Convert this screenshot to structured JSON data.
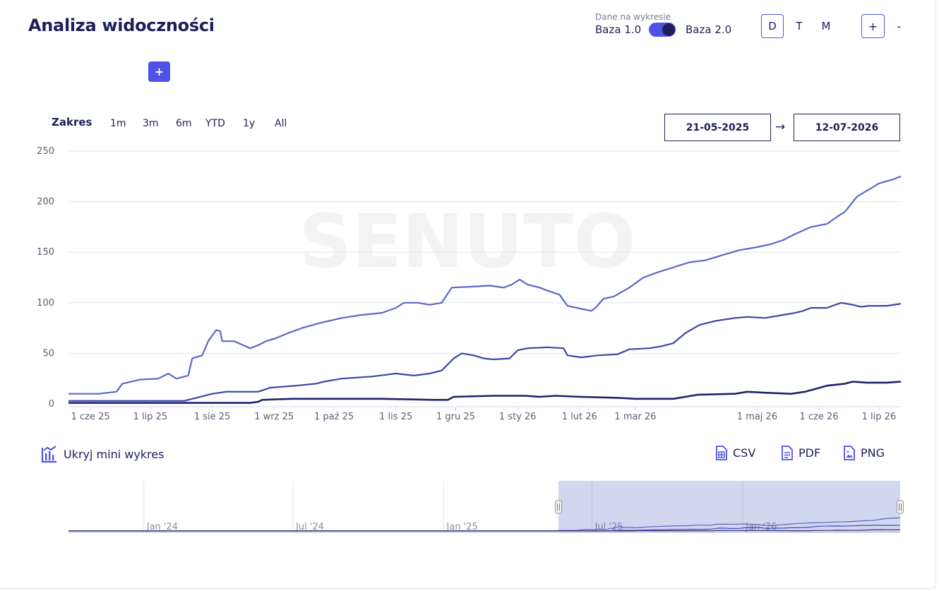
{
  "header": {
    "title": "Analiza widoczności",
    "data_caption": "Dane na wykresie",
    "base_left": "Baza 1.0",
    "base_right": "Baza 2.0",
    "periods": [
      "D",
      "T",
      "M"
    ],
    "active_period": "D",
    "zoom_in": "+",
    "zoom_out": "-"
  },
  "add_button": "+",
  "range": {
    "label": "Zakres",
    "buttons": [
      "1m",
      "3m",
      "6m",
      "YTD",
      "1y",
      "All"
    ],
    "date_from": "21-05-2025",
    "arrow": "→",
    "date_to": "12-07-2026"
  },
  "toolbar": {
    "mini_toggle": "Ukryj mini wykres",
    "csv": "CSV",
    "pdf": "PDF",
    "png": "PNG"
  },
  "colors": {
    "accent": "#4f52e6",
    "navy": "#1d1f5a",
    "series_top": "#5b67c7",
    "series_mid": "#3b46a8",
    "series_bottom": "#1e236e"
  },
  "chart_data": {
    "type": "line",
    "watermark": "SENUTO",
    "ylim": [
      0,
      250
    ],
    "yticks": [
      0,
      50,
      100,
      150,
      200,
      250
    ],
    "xlim": [
      "2025-05-21",
      "2026-07-12"
    ],
    "xticks": [
      {
        "date": "2025-06-01",
        "label": "1 cze 25"
      },
      {
        "date": "2025-07-01",
        "label": "1 lip 25"
      },
      {
        "date": "2025-08-01",
        "label": "1 sie 25"
      },
      {
        "date": "2025-09-01",
        "label": "1 wrz 25"
      },
      {
        "date": "2025-10-01",
        "label": "1 paź 25"
      },
      {
        "date": "2025-11-01",
        "label": "1 lis 25"
      },
      {
        "date": "2025-12-01",
        "label": "1 gru 25"
      },
      {
        "date": "2026-01-01",
        "label": "1 sty 26"
      },
      {
        "date": "2026-02-01",
        "label": "1 lut 26"
      },
      {
        "date": "2026-03-01",
        "label": "1 mar 26"
      },
      {
        "date": "2026-05-01",
        "label": "1 maj 26"
      },
      {
        "date": "2026-06-01",
        "label": "1 cze 26"
      },
      {
        "date": "2026-07-01",
        "label": "1 lip 26"
      }
    ],
    "series": [
      {
        "color": "#5b67c7",
        "points": [
          [
            "2025-05-21",
            10
          ],
          [
            "2025-06-05",
            10
          ],
          [
            "2025-06-14",
            12
          ],
          [
            "2025-06-17",
            20
          ],
          [
            "2025-06-26",
            24
          ],
          [
            "2025-07-05",
            25
          ],
          [
            "2025-07-10",
            30
          ],
          [
            "2025-07-14",
            25
          ],
          [
            "2025-07-20",
            28
          ],
          [
            "2025-07-22",
            45
          ],
          [
            "2025-07-27",
            48
          ],
          [
            "2025-07-30",
            62
          ],
          [
            "2025-08-03",
            73
          ],
          [
            "2025-08-05",
            72
          ],
          [
            "2025-08-06",
            62
          ],
          [
            "2025-08-12",
            62
          ],
          [
            "2025-08-20",
            55
          ],
          [
            "2025-08-24",
            58
          ],
          [
            "2025-08-28",
            62
          ],
          [
            "2025-09-02",
            65
          ],
          [
            "2025-09-08",
            70
          ],
          [
            "2025-09-15",
            75
          ],
          [
            "2025-09-24",
            80
          ],
          [
            "2025-10-05",
            85
          ],
          [
            "2025-10-15",
            88
          ],
          [
            "2025-10-25",
            90
          ],
          [
            "2025-11-01",
            95
          ],
          [
            "2025-11-05",
            100
          ],
          [
            "2025-11-12",
            100
          ],
          [
            "2025-11-18",
            98
          ],
          [
            "2025-11-24",
            100
          ],
          [
            "2025-11-29",
            115
          ],
          [
            "2025-12-10",
            116
          ],
          [
            "2025-12-18",
            117
          ],
          [
            "2025-12-25",
            115
          ],
          [
            "2025-12-29",
            118
          ],
          [
            "2026-01-02",
            123
          ],
          [
            "2026-01-06",
            118
          ],
          [
            "2026-01-12",
            115
          ],
          [
            "2026-01-16",
            112
          ],
          [
            "2026-01-22",
            108
          ],
          [
            "2026-01-26",
            97
          ],
          [
            "2026-02-02",
            94
          ],
          [
            "2026-02-07",
            92
          ],
          [
            "2026-02-09",
            95
          ],
          [
            "2026-02-13",
            104
          ],
          [
            "2026-02-18",
            106
          ],
          [
            "2026-02-26",
            115
          ],
          [
            "2026-03-05",
            125
          ],
          [
            "2026-03-12",
            130
          ],
          [
            "2026-03-20",
            135
          ],
          [
            "2026-03-28",
            140
          ],
          [
            "2026-04-05",
            142
          ],
          [
            "2026-04-15",
            148
          ],
          [
            "2026-04-22",
            152
          ],
          [
            "2026-05-01",
            155
          ],
          [
            "2026-05-08",
            158
          ],
          [
            "2026-05-14",
            162
          ],
          [
            "2026-05-20",
            168
          ],
          [
            "2026-05-28",
            175
          ],
          [
            "2026-06-05",
            178
          ],
          [
            "2026-06-10",
            185
          ],
          [
            "2026-06-14",
            190
          ],
          [
            "2026-06-20",
            205
          ],
          [
            "2026-06-26",
            212
          ],
          [
            "2026-07-01",
            218
          ],
          [
            "2026-07-08",
            222
          ],
          [
            "2026-07-12",
            225
          ]
        ]
      },
      {
        "color": "#3b46a8",
        "points": [
          [
            "2025-05-21",
            3
          ],
          [
            "2025-06-20",
            3
          ],
          [
            "2025-07-10",
            3
          ],
          [
            "2025-07-18",
            3
          ],
          [
            "2025-07-24",
            6
          ],
          [
            "2025-08-01",
            10
          ],
          [
            "2025-08-08",
            12
          ],
          [
            "2025-08-24",
            12
          ],
          [
            "2025-08-30",
            16
          ],
          [
            "2025-09-12",
            18
          ],
          [
            "2025-09-22",
            20
          ],
          [
            "2025-09-26",
            22
          ],
          [
            "2025-10-05",
            25
          ],
          [
            "2025-10-20",
            27
          ],
          [
            "2025-11-01",
            30
          ],
          [
            "2025-11-10",
            28
          ],
          [
            "2025-11-18",
            30
          ],
          [
            "2025-11-24",
            33
          ],
          [
            "2025-11-30",
            45
          ],
          [
            "2025-12-04",
            50
          ],
          [
            "2025-12-10",
            48
          ],
          [
            "2025-12-15",
            45
          ],
          [
            "2025-12-20",
            44
          ],
          [
            "2025-12-28",
            45
          ],
          [
            "2026-01-01",
            53
          ],
          [
            "2026-01-06",
            55
          ],
          [
            "2026-01-16",
            56
          ],
          [
            "2026-01-24",
            55
          ],
          [
            "2026-01-26",
            48
          ],
          [
            "2026-02-02",
            46
          ],
          [
            "2026-02-10",
            48
          ],
          [
            "2026-02-20",
            49
          ],
          [
            "2026-02-26",
            54
          ],
          [
            "2026-03-08",
            55
          ],
          [
            "2026-03-14",
            57
          ],
          [
            "2026-03-20",
            60
          ],
          [
            "2026-03-26",
            70
          ],
          [
            "2026-04-02",
            78
          ],
          [
            "2026-04-10",
            82
          ],
          [
            "2026-04-20",
            85
          ],
          [
            "2026-04-26",
            86
          ],
          [
            "2026-05-05",
            85
          ],
          [
            "2026-05-14",
            88
          ],
          [
            "2026-05-20",
            90
          ],
          [
            "2026-05-24",
            92
          ],
          [
            "2026-05-28",
            95
          ],
          [
            "2026-06-05",
            95
          ],
          [
            "2026-06-12",
            100
          ],
          [
            "2026-06-18",
            98
          ],
          [
            "2026-06-22",
            96
          ],
          [
            "2026-06-26",
            97
          ],
          [
            "2026-07-05",
            97
          ],
          [
            "2026-07-12",
            99
          ]
        ]
      },
      {
        "color": "#1e236e",
        "points": [
          [
            "2025-05-21",
            1
          ],
          [
            "2025-08-20",
            1
          ],
          [
            "2025-08-24",
            2
          ],
          [
            "2025-08-26",
            4
          ],
          [
            "2025-09-10",
            5
          ],
          [
            "2025-10-25",
            5
          ],
          [
            "2025-11-20",
            4
          ],
          [
            "2025-11-27",
            4
          ],
          [
            "2025-11-30",
            7
          ],
          [
            "2025-12-20",
            8
          ],
          [
            "2026-01-05",
            8
          ],
          [
            "2026-01-12",
            7
          ],
          [
            "2026-01-20",
            8
          ],
          [
            "2026-02-01",
            7
          ],
          [
            "2026-02-20",
            6
          ],
          [
            "2026-03-01",
            5
          ],
          [
            "2026-03-20",
            5
          ],
          [
            "2026-04-01",
            9
          ],
          [
            "2026-04-20",
            10
          ],
          [
            "2026-04-26",
            12
          ],
          [
            "2026-05-05",
            11
          ],
          [
            "2026-05-18",
            10
          ],
          [
            "2026-05-25",
            12
          ],
          [
            "2026-06-05",
            18
          ],
          [
            "2026-06-14",
            20
          ],
          [
            "2026-06-18",
            22
          ],
          [
            "2026-06-25",
            21
          ],
          [
            "2026-07-05",
            21
          ],
          [
            "2026-07-12",
            22
          ]
        ]
      }
    ]
  },
  "navigator": {
    "labels": [
      "Jan '24",
      "Jul '24",
      "Jan '25",
      "Jul '25",
      "Jan '26"
    ],
    "label_dates": [
      "2024-01-01",
      "2024-07-01",
      "2025-01-01",
      "2025-07-01",
      "2026-01-01"
    ],
    "start": "2023-10-01",
    "end": "2026-07-12",
    "selected_from": "2025-05-21",
    "selected_to": "2026-07-12"
  }
}
